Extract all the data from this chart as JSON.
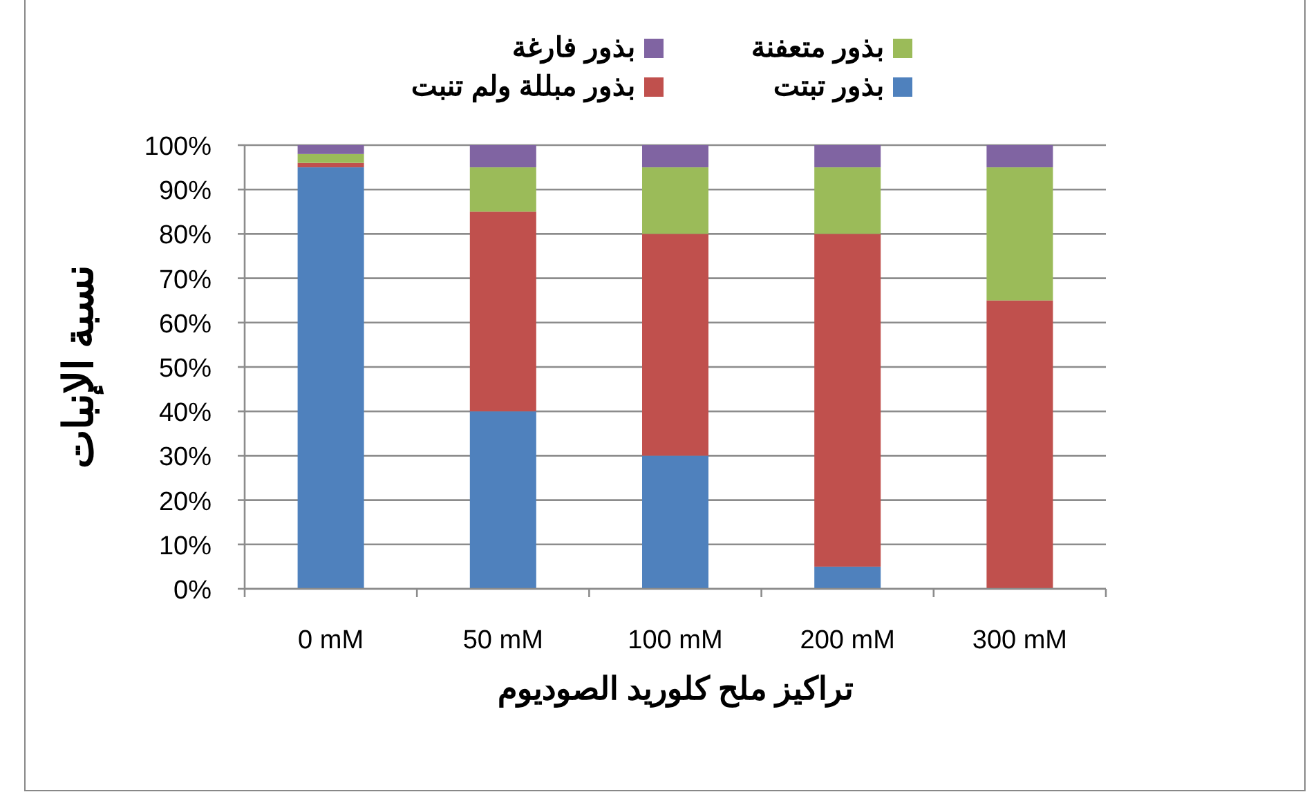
{
  "chart_data": {
    "type": "bar",
    "stacked": true,
    "xlabel": "تراكيز ملح كلوريد الصوديوم",
    "ylabel": "نسبة الإنبات",
    "categories": [
      "0 mM",
      "50 mM",
      "100 mM",
      "200 mM",
      "300 mM"
    ],
    "series": [
      {
        "name": "بذور تبتت",
        "color": "#4f81bd",
        "values": [
          95,
          40,
          30,
          5,
          0
        ]
      },
      {
        "name": "بذور مبللة ولم تنبت",
        "color": "#c0504d",
        "values": [
          1,
          45,
          50,
          75,
          65
        ]
      },
      {
        "name": "بذور متعفنة",
        "color": "#9bbb59",
        "values": [
          2,
          10,
          15,
          15,
          30
        ]
      },
      {
        "name": "بذور فارغة",
        "color": "#8064a2",
        "values": [
          2,
          5,
          5,
          5,
          5
        ]
      }
    ],
    "ylim": [
      0,
      100
    ],
    "yticks": [
      {
        "value": 0,
        "label": "0%"
      },
      {
        "value": 10,
        "label": "10%"
      },
      {
        "value": 20,
        "label": "20%"
      },
      {
        "value": 30,
        "label": "30%"
      },
      {
        "value": 40,
        "label": "40%"
      },
      {
        "value": 50,
        "label": "50%"
      },
      {
        "value": 60,
        "label": "60%"
      },
      {
        "value": 70,
        "label": "70%"
      },
      {
        "value": 80,
        "label": "80%"
      },
      {
        "value": 90,
        "label": "90%"
      },
      {
        "value": 100,
        "label": "100%"
      }
    ],
    "grid": "y",
    "legend": "top"
  }
}
